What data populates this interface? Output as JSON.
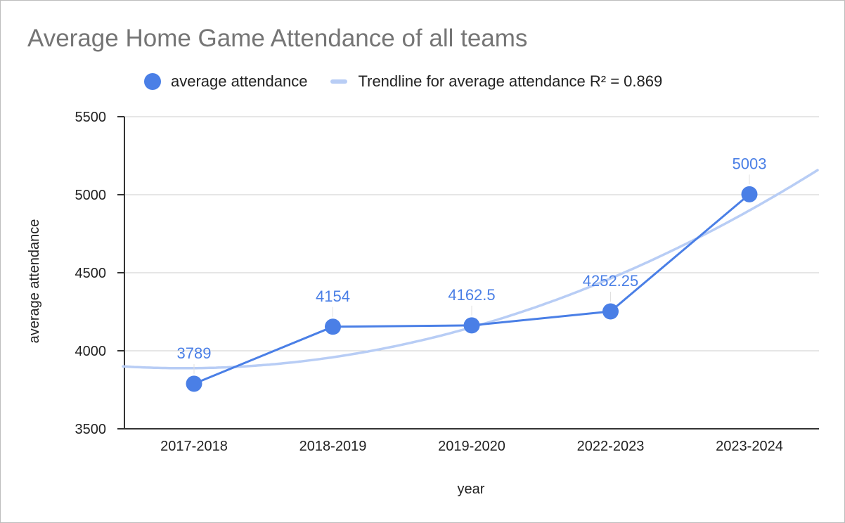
{
  "chart_data": {
    "type": "line",
    "title": "Average Home Game Attendance of all teams",
    "xlabel": "year",
    "ylabel": "average attendance",
    "categories": [
      "2017-2018",
      "2018-2019",
      "2019-2020",
      "2022-2023",
      "2023-2024"
    ],
    "series": [
      {
        "name": "average attendance",
        "values": [
          3789,
          4154,
          4162.5,
          4252.25,
          5003
        ],
        "data_labels": [
          "3789",
          "4154",
          "4162.5",
          "4252.25",
          "5003"
        ],
        "color": "#4a7fe6"
      }
    ],
    "trendline": {
      "name": "Trendline for average attendance R² = 0.869",
      "type": "polynomial",
      "r_squared": 0.869,
      "color": "#b8cdf5"
    },
    "ylim": [
      3500,
      5500
    ],
    "yticks": [
      "3500",
      "4000",
      "4500",
      "5000",
      "5500"
    ],
    "grid": true,
    "legend_position": "top"
  }
}
